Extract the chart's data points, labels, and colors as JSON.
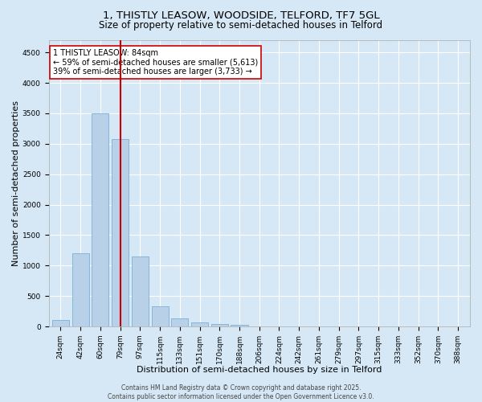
{
  "title_line1": "1, THISTLY LEASOW, WOODSIDE, TELFORD, TF7 5GL",
  "title_line2": "Size of property relative to semi-detached houses in Telford",
  "xlabel": "Distribution of semi-detached houses by size in Telford",
  "ylabel": "Number of semi-detached properties",
  "categories": [
    "24sqm",
    "42sqm",
    "60sqm",
    "79sqm",
    "97sqm",
    "115sqm",
    "133sqm",
    "151sqm",
    "170sqm",
    "188sqm",
    "206sqm",
    "224sqm",
    "242sqm",
    "261sqm",
    "279sqm",
    "297sqm",
    "315sqm",
    "333sqm",
    "352sqm",
    "370sqm",
    "388sqm"
  ],
  "values": [
    110,
    1200,
    3500,
    3080,
    1150,
    330,
    130,
    65,
    40,
    30,
    0,
    0,
    0,
    0,
    0,
    0,
    0,
    0,
    0,
    0,
    0
  ],
  "bar_color": "#b8d0e8",
  "bar_edge_color": "#7bafd4",
  "vline_x_index": 3,
  "vline_color": "#cc0000",
  "annotation_line1": "1 THISTLY LEASOW: 84sqm",
  "annotation_line2": "← 59% of semi-detached houses are smaller (5,613)",
  "annotation_line3": "39% of semi-detached houses are larger (3,733) →",
  "ylim": [
    0,
    4700
  ],
  "yticks": [
    0,
    500,
    1000,
    1500,
    2000,
    2500,
    3000,
    3500,
    4000,
    4500
  ],
  "background_color": "#d6e8f5",
  "plot_background_color": "#d6e8f5",
  "footer_line1": "Contains HM Land Registry data © Crown copyright and database right 2025.",
  "footer_line2": "Contains public sector information licensed under the Open Government Licence v3.0.",
  "title_fontsize": 9.5,
  "subtitle_fontsize": 8.5,
  "axis_label_fontsize": 8,
  "tick_fontsize": 6.5,
  "annotation_fontsize": 7,
  "footer_fontsize": 5.5
}
